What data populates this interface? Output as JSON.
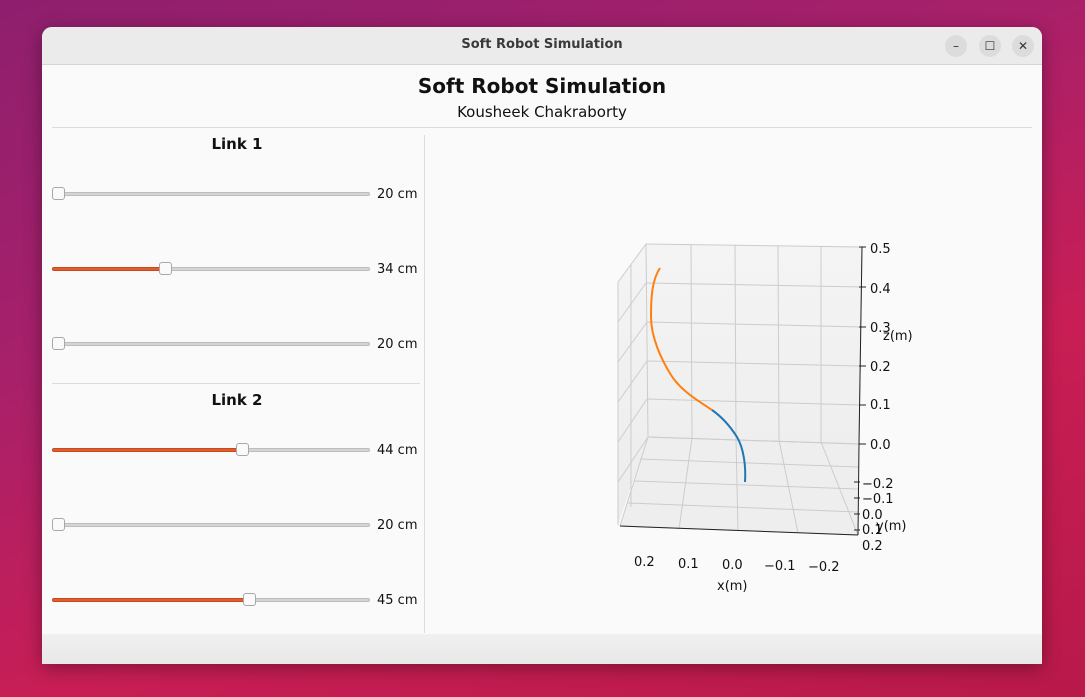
{
  "window": {
    "title": "Soft Robot Simulation",
    "controls": {
      "minimize": "–",
      "maximize": "☐",
      "close": "✕"
    }
  },
  "header": {
    "title": "Soft Robot Simulation",
    "author": "Kousheek Chakraborty"
  },
  "accent_color": "#e05d30",
  "links": [
    {
      "title": "Link 1",
      "sliders": [
        {
          "value": 20,
          "min": 20,
          "max": 60,
          "label": "20 cm"
        },
        {
          "value": 34,
          "min": 20,
          "max": 60,
          "label": "34 cm"
        },
        {
          "value": 20,
          "min": 20,
          "max": 60,
          "label": "20 cm"
        }
      ]
    },
    {
      "title": "Link 2",
      "sliders": [
        {
          "value": 44,
          "min": 20,
          "max": 60,
          "label": "44 cm"
        },
        {
          "value": 20,
          "min": 20,
          "max": 60,
          "label": "20 cm"
        },
        {
          "value": 45,
          "min": 20,
          "max": 60,
          "label": "45 cm"
        }
      ]
    }
  ],
  "chart_data": {
    "type": "line",
    "projection": "3d",
    "xlabel": "x(m)",
    "ylabel": "y(m)",
    "zlabel": "z(m)",
    "x_ticks": [
      "0.2",
      "0.1",
      "0.0",
      "−0.1",
      "−0.2"
    ],
    "y_ticks": [
      "−0.2",
      "−0.1",
      "0.0",
      "0.1",
      "0.2"
    ],
    "z_ticks": [
      "0.0",
      "0.1",
      "0.2",
      "0.3",
      "0.4",
      "0.5"
    ],
    "grid": true,
    "series": [
      {
        "color": "#1f77b4"
      },
      {
        "color": "#ff7f0e"
      }
    ]
  }
}
